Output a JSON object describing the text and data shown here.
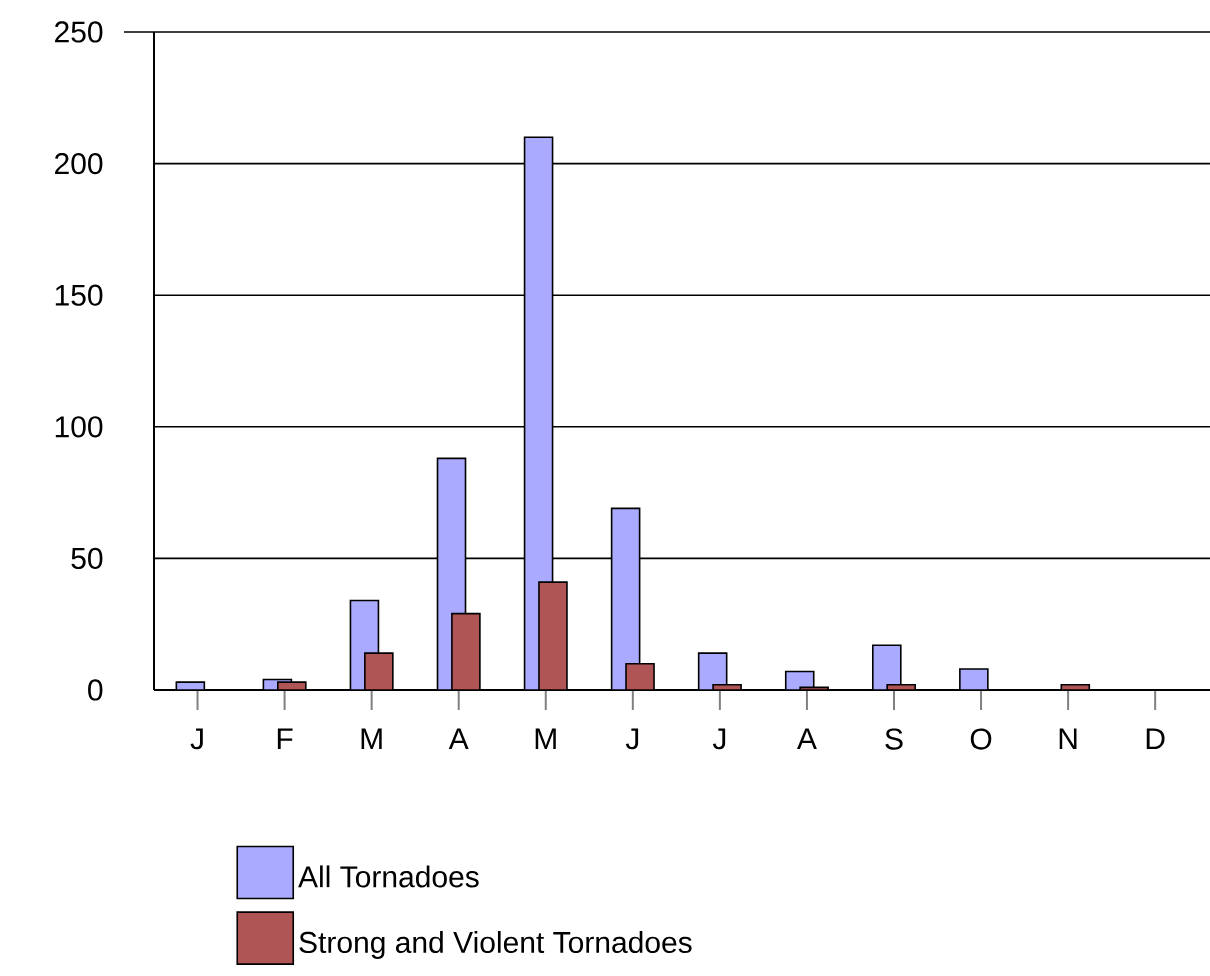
{
  "chart_data": {
    "type": "bar",
    "categories": [
      "J",
      "F",
      "M",
      "A",
      "M",
      "J",
      "J",
      "A",
      "S",
      "O",
      "N",
      "D"
    ],
    "series": [
      {
        "name": "All Tornadoes",
        "color": "#aaaaff",
        "values": [
          3,
          4,
          34,
          88,
          210,
          69,
          14,
          7,
          17,
          8,
          0,
          0
        ]
      },
      {
        "name": "Strong and Violent Tornadoes",
        "color": "#b05555",
        "values": [
          0,
          3,
          14,
          29,
          41,
          10,
          2,
          1,
          2,
          0,
          2,
          0
        ]
      }
    ],
    "ylim": [
      0,
      250
    ],
    "yticks": [
      0,
      50,
      100,
      150,
      200,
      250
    ],
    "grid": "y",
    "legend": "bottom"
  }
}
